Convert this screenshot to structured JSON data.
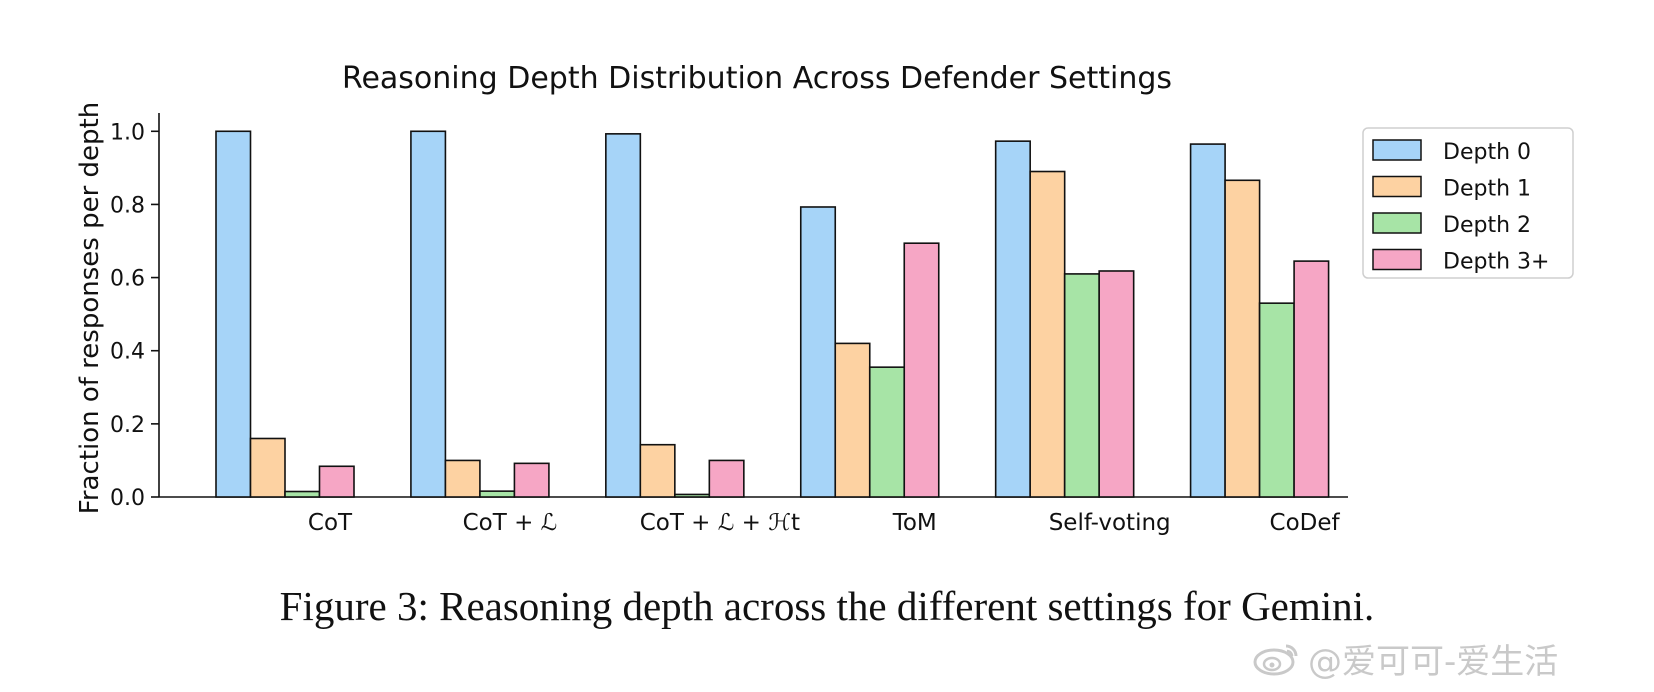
{
  "chart_data": {
    "type": "bar",
    "title": "Reasoning Depth Distribution Across Defender Settings",
    "xlabel": "",
    "ylabel": "Fraction of responses per depth",
    "ylim": [
      0,
      1.05
    ],
    "yticks": [
      "0.0",
      "0.2",
      "0.4",
      "0.6",
      "0.8",
      "1.0"
    ],
    "categories": [
      "CoT",
      "CoT + ℒ",
      "CoT + ℒ + ℋt",
      "ToM",
      "Self-voting",
      "CoDef"
    ],
    "series": [
      {
        "name": "Depth 0",
        "color": "#a6d4f8",
        "values": [
          1.0,
          1.0,
          0.993,
          0.793,
          0.973,
          0.965
        ]
      },
      {
        "name": "Depth 1",
        "color": "#fdd2a2",
        "values": [
          0.16,
          0.1,
          0.143,
          0.42,
          0.89,
          0.866
        ]
      },
      {
        "name": "Depth 2",
        "color": "#a7e4a6",
        "values": [
          0.015,
          0.016,
          0.007,
          0.355,
          0.61,
          0.53
        ]
      },
      {
        "name": "Depth 3+",
        "color": "#f6a6c5",
        "values": [
          0.084,
          0.092,
          0.1,
          0.694,
          0.618,
          0.645
        ]
      }
    ],
    "legend_position": "top-right, outside plot",
    "grid": false
  },
  "caption": "Figure 3: Reasoning depth across the different settings for Gemini.",
  "watermark": "@爱可可-爱生活"
}
